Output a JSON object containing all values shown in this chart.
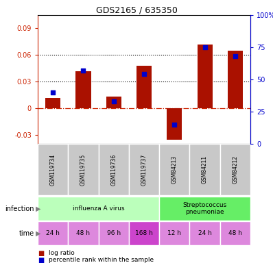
{
  "title": "GDS2165 / 635350",
  "samples": [
    "GSM119734",
    "GSM119735",
    "GSM119736",
    "GSM119737",
    "GSM84213",
    "GSM84211",
    "GSM84212"
  ],
  "log_ratio": [
    0.012,
    0.042,
    0.013,
    0.048,
    -0.035,
    0.072,
    0.065
  ],
  "perc_pct": [
    40,
    57,
    33,
    54,
    15,
    75,
    68
  ],
  "ylim_left": [
    -0.04,
    0.105
  ],
  "ylim_right": [
    0,
    100
  ],
  "yticks_left": [
    -0.03,
    0.0,
    0.03,
    0.06,
    0.09
  ],
  "yticks_right": [
    0,
    25,
    50,
    75,
    100
  ],
  "hlines": [
    0.03,
    0.06
  ],
  "bar_color": "#aa1100",
  "dot_color": "#0000cc",
  "infection_groups": [
    {
      "label": "influenza A virus",
      "indices": [
        0,
        1,
        2,
        3
      ],
      "color": "#bbffbb"
    },
    {
      "label": "Streptococcus\npneumoniae",
      "indices": [
        4,
        5,
        6
      ],
      "color": "#66ee66"
    }
  ],
  "time_labels": [
    "24 h",
    "48 h",
    "96 h",
    "168 h",
    "12 h",
    "24 h",
    "48 h"
  ],
  "time_color_light": "#dd88dd",
  "time_color_dark": "#cc44cc",
  "time_dark_index": 3,
  "infection_label": "infection",
  "time_label": "time",
  "legend_bar_label": "log ratio",
  "legend_dot_label": "percentile rank within the sample",
  "zero_line_color": "#cc2200",
  "sample_bg_color": "#c8c8c8",
  "bar_width": 0.5
}
